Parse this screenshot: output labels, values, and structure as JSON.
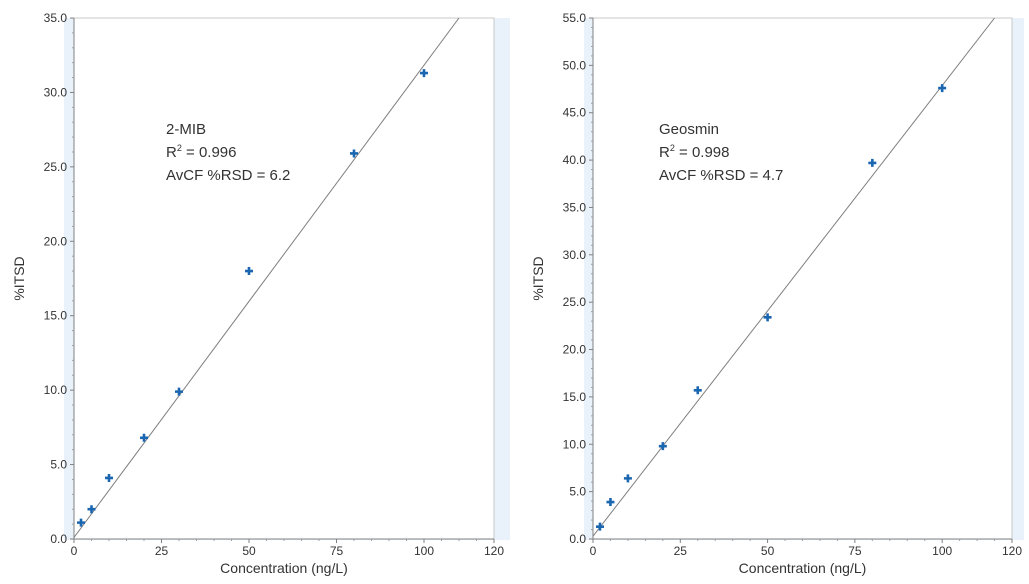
{
  "chart_data": [
    {
      "type": "scatter",
      "xlabel": "Concentration (ng/L)",
      "ylabel": "%ITSD",
      "xlim": [
        0,
        120
      ],
      "ylim": [
        0,
        35
      ],
      "x_ticks": [
        "0",
        "25",
        "50",
        "75",
        "100",
        "120"
      ],
      "y_ticks": [
        "0.0",
        "5.0",
        "10.0",
        "15.0",
        "20.0",
        "25.0",
        "30.0",
        "35.0"
      ],
      "annotation": {
        "compound": "2-MIB",
        "r2_prefix": "R",
        "r2_sup": "2",
        "r2_value": " = 0.996",
        "rsd": "AvCF %RSD = 6.2"
      },
      "series": [
        {
          "x": [
            2,
            5,
            10,
            20,
            30,
            50,
            80,
            100
          ],
          "y": [
            1.1,
            2.0,
            4.1,
            6.8,
            9.9,
            18.0,
            25.9,
            31.3
          ]
        }
      ],
      "fit_line": {
        "x": [
          0,
          110
        ],
        "y": [
          0.1,
          35.0
        ]
      },
      "grid": false,
      "plot_background": "#ffffff",
      "outer_band_color": "#e9f2fb",
      "marker_color": "#1a66b0",
      "line_color": "#7f7f7f"
    },
    {
      "type": "scatter",
      "xlabel": "Concentration (ng/L)",
      "ylabel": "%ITSD",
      "xlim": [
        0,
        120
      ],
      "ylim": [
        0,
        55
      ],
      "x_ticks": [
        "0",
        "25",
        "50",
        "75",
        "100",
        "120"
      ],
      "y_ticks": [
        "0.0",
        "5.0",
        "10.0",
        "15.0",
        "20.0",
        "25.0",
        "30.0",
        "35.0",
        "40.0",
        "45.0",
        "50.0",
        "55.0"
      ],
      "annotation": {
        "compound": "Geosmin",
        "r2_prefix": "R",
        "r2_sup": "2",
        "r2_value": " = 0.998",
        "rsd": "AvCF %RSD = 4.7"
      },
      "series": [
        {
          "x": [
            2,
            5,
            10,
            20,
            30,
            50,
            80,
            100
          ],
          "y": [
            1.3,
            3.9,
            6.4,
            9.8,
            15.7,
            23.4,
            39.7,
            47.6
          ]
        }
      ],
      "fit_line": {
        "x": [
          0,
          115
        ],
        "y": [
          0.3,
          55.0
        ]
      },
      "grid": false,
      "plot_background": "#ffffff",
      "outer_band_color": "#e9f2fb",
      "marker_color": "#1a66b0",
      "line_color": "#7f7f7f"
    }
  ]
}
